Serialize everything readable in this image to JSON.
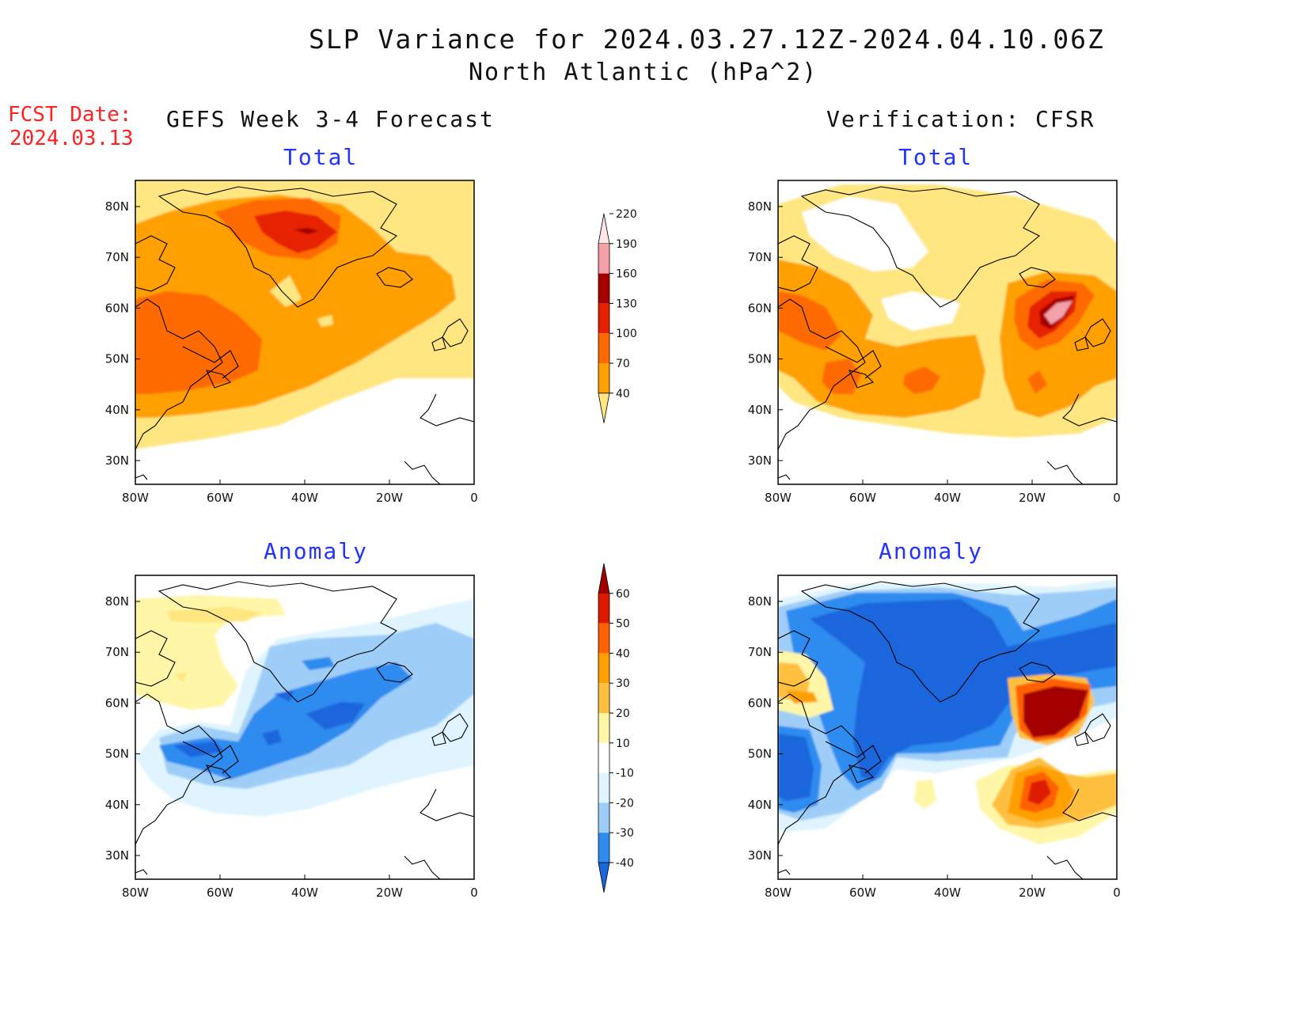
{
  "figure": {
    "title": "SLP Variance for 2024.03.27.12Z-2024.04.10.06Z",
    "subtitle": "North Atlantic (hPa^2)",
    "fcst_date_label": "FCST Date:",
    "fcst_date_value": "2024.03.13",
    "left_column_title": "GEFS Week 3-4 Forecast",
    "right_column_title": "Verification: CFSR"
  },
  "panels": [
    {
      "id": "fcst-total",
      "title": "Total"
    },
    {
      "id": "cfsr-total",
      "title": "Total"
    },
    {
      "id": "fcst-anomaly",
      "title": "Anomaly"
    },
    {
      "id": "cfsr-anomaly",
      "title": "Anomaly"
    }
  ],
  "axes": {
    "lon_ticks": [
      "80W",
      "60W",
      "40W",
      "20W",
      "0"
    ],
    "lat_ticks": [
      "30N",
      "40N",
      "50N",
      "60N",
      "70N",
      "80N"
    ]
  },
  "colorbar_total": {
    "levels": [
      "40",
      "70",
      "100",
      "130",
      "160",
      "190",
      "220"
    ],
    "colors": [
      "#ffe680",
      "#ffa000",
      "#ff6a00",
      "#e62000",
      "#a50000",
      "#f4a0a8",
      "#ffe6e6"
    ]
  },
  "colorbar_anomaly": {
    "levels": [
      "-40",
      "-30",
      "-20",
      "-10",
      "10",
      "20",
      "30",
      "40",
      "50",
      "60"
    ],
    "colors": [
      "#1a66dd",
      "#2f8bef",
      "#9ecef8",
      "#dff4ff",
      "#ffffff",
      "#fff6a8",
      "#ffc040",
      "#ffa000",
      "#ff6000",
      "#dd1a00",
      "#a50000"
    ]
  }
}
